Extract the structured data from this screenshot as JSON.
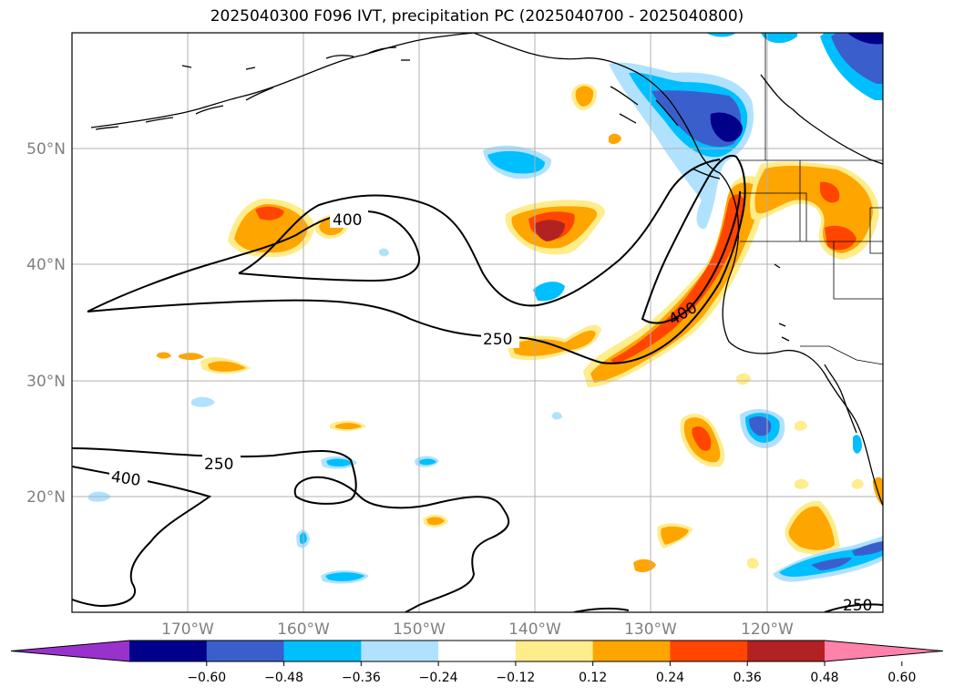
{
  "title": "2025040300 F096 IVT, precipitation PC (2025040700 - 2025040800)",
  "map": {
    "lon_range": [
      -180,
      -110
    ],
    "lat_range": [
      10,
      60
    ],
    "lat_labels": [
      "50°N",
      "40°N",
      "30°N",
      "20°N"
    ],
    "lon_labels": [
      "170°W",
      "160°W",
      "150°W",
      "140°W",
      "130°W",
      "120°W"
    ],
    "gridlines": true
  },
  "ivt_contours": {
    "levels": [
      250,
      400
    ],
    "labels": [
      "400",
      "250",
      "400",
      "250",
      "400",
      "250"
    ]
  },
  "colorbar": {
    "orientation": "horizontal",
    "extend": "both",
    "ticks": [
      "−0.60",
      "−0.48",
      "−0.36",
      "−0.24",
      "−0.12",
      "0.12",
      "0.24",
      "0.36",
      "0.48",
      "0.60"
    ],
    "colors": [
      "#9932cc",
      "#00008b",
      "#3a5fcd",
      "#00bfff",
      "#b0e2ff",
      "#ffffff",
      "#ffec8b",
      "#ffa500",
      "#ff4500",
      "#b22222",
      "#ff82ab"
    ]
  }
}
